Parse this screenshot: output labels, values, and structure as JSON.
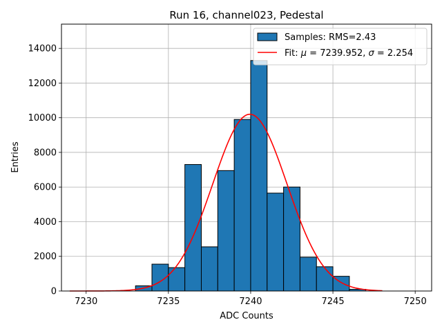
{
  "chart_data": {
    "type": "bar",
    "title": "Run 16, channel023, Pedestal",
    "xlabel": "ADC Counts",
    "ylabel": "Entries",
    "xlim": [
      7228.5,
      7251.0
    ],
    "ylim": [
      0,
      15400
    ],
    "x_ticks": [
      7230,
      7235,
      7240,
      7245,
      7250
    ],
    "y_ticks": [
      0,
      2000,
      4000,
      6000,
      8000,
      10000,
      12000,
      14000
    ],
    "grid": true,
    "legend_position": "top-right",
    "histogram": {
      "name": "Samples: RMS=2.43",
      "color": "#1f77b4",
      "bin_width": 1,
      "bin_lefts": [
        7233,
        7234,
        7235,
        7236,
        7237,
        7238,
        7239,
        7240,
        7241,
        7242,
        7243,
        7244,
        7245,
        7246
      ],
      "counts": [
        300,
        1550,
        1350,
        7300,
        2550,
        6950,
        9900,
        13300,
        5650,
        6000,
        1950,
        1400,
        850,
        100
      ]
    },
    "fit": {
      "name_prefix": "Fit: ",
      "name_mu_symbol": "μ",
      "name_mu_value": " = 7239.952, ",
      "name_sigma_symbol": "σ",
      "name_sigma_value": " = 2.254",
      "color": "#ff0000",
      "mu": 7239.952,
      "sigma": 2.254,
      "amplitude": 10200,
      "x_range": [
        7229,
        7248
      ]
    }
  }
}
